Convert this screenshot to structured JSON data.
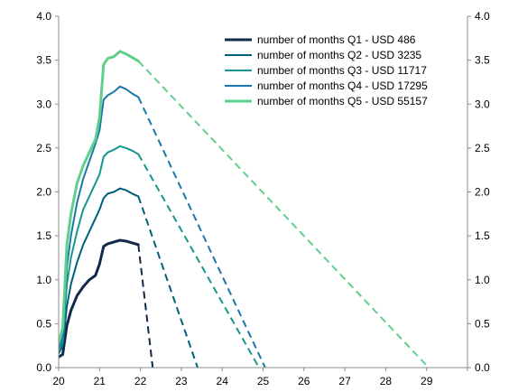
{
  "chart_data": {
    "type": "line",
    "title": "",
    "xlabel": "",
    "ylabel": "",
    "xlim": [
      20,
      30
    ],
    "ylim": [
      0,
      4
    ],
    "x_ticks": [
      "20",
      "21",
      "22",
      "23",
      "24",
      "25",
      "26",
      "27",
      "28",
      "29"
    ],
    "y_ticks": [
      "0.0",
      "0.5",
      "1.0",
      "1.5",
      "2.0",
      "2.5",
      "3.0",
      "3.5",
      "4.0"
    ],
    "y2_ticks": [
      "0.0",
      "0.5",
      "1.0",
      "1.5",
      "2.0",
      "2.5",
      "3.0",
      "3.5",
      "4.0"
    ],
    "grid": false,
    "legend_position": "top-right",
    "series": [
      {
        "name": "number of months Q1 - USD 486",
        "color": "#13294b",
        "width": 3,
        "solid": [
          [
            20.0,
            0.12
          ],
          [
            20.1,
            0.15
          ],
          [
            20.2,
            0.48
          ],
          [
            20.3,
            0.65
          ],
          [
            20.45,
            0.82
          ],
          [
            20.6,
            0.92
          ],
          [
            20.75,
            1.0
          ],
          [
            20.9,
            1.05
          ],
          [
            21.0,
            1.18
          ],
          [
            21.1,
            1.38
          ],
          [
            21.2,
            1.41
          ],
          [
            21.35,
            1.43
          ],
          [
            21.5,
            1.45
          ],
          [
            21.65,
            1.44
          ],
          [
            21.8,
            1.42
          ],
          [
            21.95,
            1.4
          ]
        ],
        "dashed": [
          [
            21.95,
            1.4
          ],
          [
            22.3,
            0.0
          ]
        ]
      },
      {
        "name": "number of months Q2 - USD 3235",
        "color": "#00607a",
        "width": 2,
        "solid": [
          [
            20.0,
            0.16
          ],
          [
            20.1,
            0.25
          ],
          [
            20.2,
            0.7
          ],
          [
            20.3,
            0.95
          ],
          [
            20.45,
            1.2
          ],
          [
            20.6,
            1.4
          ],
          [
            20.75,
            1.55
          ],
          [
            20.9,
            1.7
          ],
          [
            21.0,
            1.8
          ],
          [
            21.1,
            1.93
          ],
          [
            21.2,
            1.98
          ],
          [
            21.35,
            2.0
          ],
          [
            21.5,
            2.04
          ],
          [
            21.65,
            2.02
          ],
          [
            21.8,
            1.98
          ],
          [
            21.95,
            1.95
          ]
        ],
        "dashed": [
          [
            21.95,
            1.95
          ],
          [
            23.4,
            0.0
          ]
        ]
      },
      {
        "name": "number of months Q3 - USD 11717",
        "color": "#15968e",
        "width": 2,
        "solid": [
          [
            20.0,
            0.18
          ],
          [
            20.1,
            0.3
          ],
          [
            20.2,
            0.95
          ],
          [
            20.3,
            1.25
          ],
          [
            20.45,
            1.55
          ],
          [
            20.6,
            1.8
          ],
          [
            20.75,
            1.95
          ],
          [
            20.9,
            2.1
          ],
          [
            21.0,
            2.2
          ],
          [
            21.1,
            2.4
          ],
          [
            21.2,
            2.45
          ],
          [
            21.35,
            2.48
          ],
          [
            21.5,
            2.52
          ],
          [
            21.65,
            2.5
          ],
          [
            21.8,
            2.47
          ],
          [
            21.95,
            2.43
          ]
        ],
        "dashed": [
          [
            21.95,
            2.43
          ],
          [
            24.9,
            0.0
          ]
        ]
      },
      {
        "name": "number of months Q4 - USD 17295",
        "color": "#1a78a8",
        "width": 2,
        "solid": [
          [
            20.0,
            0.22
          ],
          [
            20.1,
            0.35
          ],
          [
            20.2,
            1.15
          ],
          [
            20.3,
            1.5
          ],
          [
            20.45,
            1.88
          ],
          [
            20.6,
            2.15
          ],
          [
            20.75,
            2.35
          ],
          [
            20.9,
            2.55
          ],
          [
            21.0,
            2.7
          ],
          [
            21.1,
            3.05
          ],
          [
            21.2,
            3.1
          ],
          [
            21.35,
            3.14
          ],
          [
            21.5,
            3.2
          ],
          [
            21.65,
            3.17
          ],
          [
            21.8,
            3.12
          ],
          [
            21.95,
            3.08
          ]
        ],
        "dashed": [
          [
            21.95,
            3.08
          ],
          [
            25.05,
            0.0
          ]
        ]
      },
      {
        "name": "number of months Q5 - USD 55157",
        "color": "#5fd08c",
        "width": 3,
        "solid": [
          [
            20.0,
            0.28
          ],
          [
            20.1,
            0.45
          ],
          [
            20.2,
            1.4
          ],
          [
            20.3,
            1.75
          ],
          [
            20.45,
            2.1
          ],
          [
            20.6,
            2.3
          ],
          [
            20.75,
            2.45
          ],
          [
            20.9,
            2.6
          ],
          [
            21.0,
            2.85
          ],
          [
            21.1,
            3.45
          ],
          [
            21.2,
            3.52
          ],
          [
            21.35,
            3.54
          ],
          [
            21.5,
            3.6
          ],
          [
            21.65,
            3.57
          ],
          [
            21.8,
            3.53
          ],
          [
            21.95,
            3.49
          ]
        ],
        "dashed": [
          [
            21.95,
            3.49
          ],
          [
            29.05,
            0.0
          ]
        ]
      }
    ]
  }
}
